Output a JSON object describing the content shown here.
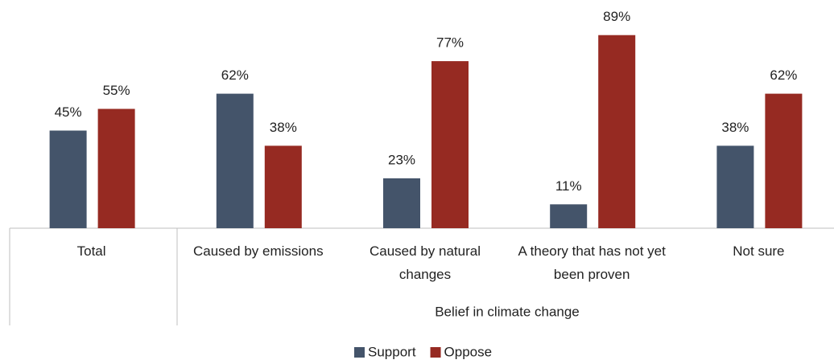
{
  "chart_data": {
    "type": "bar",
    "categories": [
      "Total",
      "Caused by emissions",
      "Caused by natural changes",
      "A theory that has not yet been proven",
      "Not sure"
    ],
    "group_label": "Belief in climate change",
    "series": [
      {
        "name": "Support",
        "color": "#44546a",
        "values": [
          45,
          62,
          23,
          11,
          38
        ],
        "value_labels": [
          "45%",
          "62%",
          "23%",
          "11%",
          "38%"
        ]
      },
      {
        "name": "Oppose",
        "color": "#962a22",
        "values": [
          55,
          38,
          77,
          89,
          62
        ],
        "value_labels": [
          "55%",
          "38%",
          "77%",
          "89%",
          "62%"
        ]
      }
    ],
    "legend": "bottom"
  }
}
